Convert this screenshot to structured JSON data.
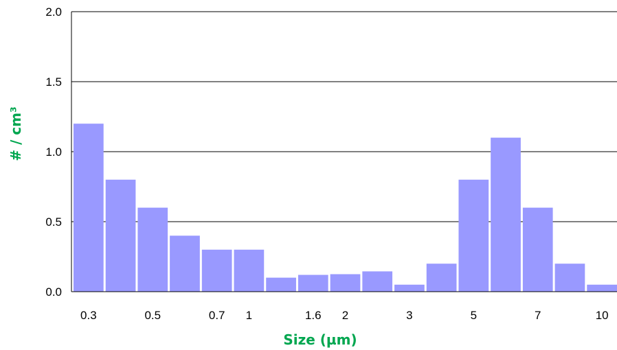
{
  "chart_data": {
    "type": "bar",
    "title": "",
    "xlabel": "Size (µm)",
    "ylabel": "# / cm³",
    "ylim": [
      0,
      2.0
    ],
    "y_ticks": [
      "0.0",
      "0.5",
      "1.0",
      "1.5",
      "2.0"
    ],
    "grid": true,
    "bar_color": "#9999ff",
    "label_color": "#00a64f",
    "bars": [
      1.2,
      0.8,
      0.6,
      0.4,
      0.3,
      0.3,
      0.1,
      0.12,
      0.125,
      0.145,
      0.05,
      0.2,
      0.8,
      1.1,
      0.6,
      0.2,
      0.05
    ],
    "x_tick_labels": [
      {
        "label": "0.3",
        "bar": 0
      },
      {
        "label": "0.5",
        "bar": 2
      },
      {
        "label": "0.7",
        "bar": 4
      },
      {
        "label": "1",
        "bar": 5
      },
      {
        "label": "1.6",
        "bar": 7
      },
      {
        "label": "2",
        "bar": 8
      },
      {
        "label": "3",
        "bar": 10
      },
      {
        "label": "5",
        "bar": 12
      },
      {
        "label": "7",
        "bar": 14
      },
      {
        "label": "10",
        "bar": 16
      }
    ]
  }
}
